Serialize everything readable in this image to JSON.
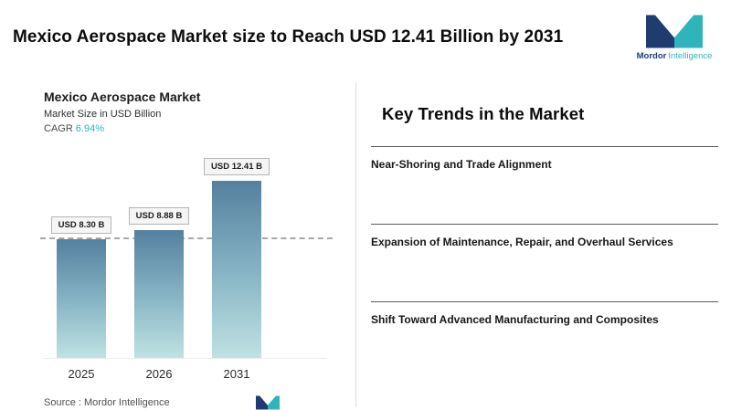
{
  "header": {
    "title": "Mexico Aerospace Market size to Reach USD 12.41 Billion by 2031"
  },
  "brand": {
    "name_bold": "Mordor",
    "name_light": "Intelligence"
  },
  "chart": {
    "title": "Mexico Aerospace Market",
    "subtitle": "Market Size in USD Billion",
    "cagr_label": "CAGR",
    "cagr_value": "6.94%",
    "source": "Source :  Mordor Intelligence"
  },
  "chart_data": {
    "type": "bar",
    "title": "Mexico Aerospace Market",
    "ylabel": "Market Size in USD Billion",
    "categories": [
      "2025",
      "2026",
      "2031"
    ],
    "values": [
      8.3,
      8.88,
      12.41
    ],
    "bar_labels": [
      "USD 8.30 B",
      "USD 8.88 B",
      "USD 12.41 B"
    ],
    "cagr_percent": 6.94,
    "ylim": [
      0,
      14
    ],
    "reference_line": 8.3,
    "grid": false,
    "legend": "none",
    "bar_gradient_top": "#55809f",
    "bar_gradient_bottom": "#bfe2e2"
  },
  "trends": {
    "title": "Key Trends in the Market",
    "items": [
      "Near-Shoring and Trade Alignment",
      "Expansion of Maintenance, Repair, and Overhaul Services",
      "Shift Toward Advanced Manufacturing and Composites"
    ]
  },
  "colors": {
    "brand_navy": "#1f3b70",
    "brand_teal": "#2fb4bb"
  }
}
